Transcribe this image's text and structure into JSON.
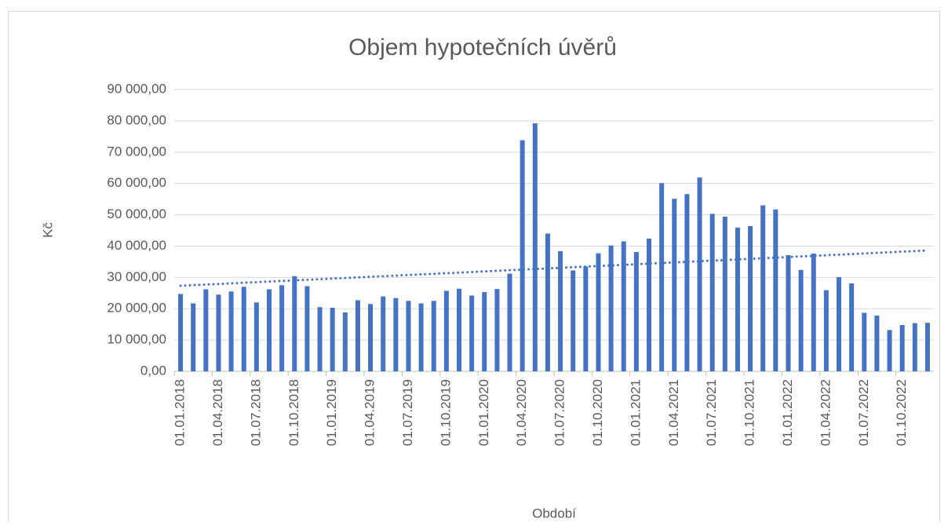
{
  "chart_data": {
    "type": "bar",
    "title": "Objem hypotečních úvěrů",
    "y_label": "Kč",
    "x_label": "Období",
    "categories": [
      "01.01.2018",
      null,
      null,
      "01.04.2018",
      null,
      null,
      "01.07.2018",
      null,
      null,
      "01.10.2018",
      null,
      null,
      "01.01.2019",
      null,
      null,
      "01.04.2019",
      null,
      null,
      "01.07.2019",
      null,
      null,
      "01.10.2019",
      null,
      null,
      "01.01.2020",
      null,
      null,
      "01.04.2020",
      null,
      null,
      "01.07.2020",
      null,
      null,
      "01.10.2020",
      null,
      null,
      "01.01.2021",
      null,
      null,
      "01.04.2021",
      null,
      null,
      "01.07.2021",
      null,
      null,
      "01.10.2021",
      null,
      null,
      "01.01.2022",
      null,
      null,
      "01.04.2022",
      null,
      null,
      "01.07.2022",
      null,
      null,
      "01.10.2022",
      null,
      null
    ],
    "values": [
      24700,
      21700,
      26200,
      24500,
      25500,
      27000,
      22000,
      26200,
      27500,
      30400,
      27200,
      20500,
      20300,
      18800,
      22700,
      21500,
      23900,
      23400,
      22500,
      21700,
      22500,
      25700,
      26400,
      24200,
      25300,
      26300,
      31200,
      73800,
      79200,
      44000,
      38400,
      32200,
      33500,
      37700,
      40200,
      41500,
      38100,
      42400,
      60100,
      55100,
      56600,
      61900,
      50300,
      49400,
      45900,
      46400,
      53000,
      51700,
      37100,
      32400,
      37600,
      25900,
      30100,
      28100,
      18700,
      17800,
      13200,
      14800,
      15400,
      15500
    ],
    "color": "#4472c4",
    "trendline": "linear",
    "ylim": [
      0,
      90000
    ],
    "yticks": [
      {
        "value": 0,
        "label": "0,00"
      },
      {
        "value": 10000,
        "label": "10 000,00"
      },
      {
        "value": 20000,
        "label": "20 000,00"
      },
      {
        "value": 30000,
        "label": "30 000,00"
      },
      {
        "value": 40000,
        "label": "40 000,00"
      },
      {
        "value": 50000,
        "label": "50 000,00"
      },
      {
        "value": 60000,
        "label": "60 000,00"
      },
      {
        "value": 70000,
        "label": "70 000,00"
      },
      {
        "value": 80000,
        "label": "80 000,00"
      },
      {
        "value": 90000,
        "label": "90 000,00"
      }
    ],
    "grid": true
  }
}
